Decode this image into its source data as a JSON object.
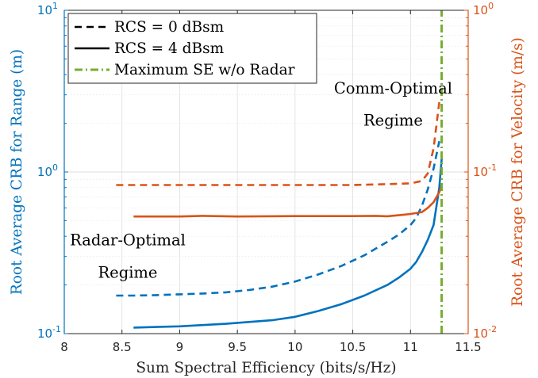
{
  "chart_data": {
    "type": "line",
    "xlabel": "Sum Spectral Efficiency (bits/s/Hz)",
    "ylabel_left": "Root Average CRB for Range (m)",
    "ylabel_right": "Root Average CRB for Velocity (m/s)",
    "xlim": [
      8,
      11.5
    ],
    "ylim_left": [
      0.1,
      10
    ],
    "ylim_right": [
      0.01,
      1
    ],
    "yscale": "log",
    "grid": true,
    "legend_position": "top-left",
    "x_ticks": [
      {
        "value": 8,
        "label": "8"
      },
      {
        "value": 8.5,
        "label": "8.5"
      },
      {
        "value": 9,
        "label": "9"
      },
      {
        "value": 9.5,
        "label": "9.5"
      },
      {
        "value": 10,
        "label": "10"
      },
      {
        "value": 10.5,
        "label": "10.5"
      },
      {
        "value": 11,
        "label": "11"
      },
      {
        "value": 11.5,
        "label": "11.5"
      }
    ],
    "y_ticks_left": [
      {
        "value": 0.1,
        "base": "10",
        "exp": "-1"
      },
      {
        "value": 1,
        "base": "10",
        "exp": "0"
      },
      {
        "value": 10,
        "base": "10",
        "exp": "1"
      }
    ],
    "y_ticks_right": [
      {
        "value": 0.01,
        "base": "10",
        "exp": "-2"
      },
      {
        "value": 0.1,
        "base": "10",
        "exp": "-1"
      },
      {
        "value": 1,
        "base": "10",
        "exp": "0"
      }
    ],
    "legend": [
      {
        "label": "RCS = 0 dBsm",
        "style": "dashed",
        "color": "#000000"
      },
      {
        "label": "RCS = 4 dBsm",
        "style": "solid",
        "color": "#000000"
      },
      {
        "label": "Maximum SE w/o Radar",
        "style": "dashdot",
        "color": "#77AC30"
      }
    ],
    "annotations": [
      {
        "text": "Comm-Optimal",
        "x": 10.85,
        "y_left": 3.3
      },
      {
        "text": "Regime",
        "x": 10.85,
        "y_left": 2.1
      },
      {
        "text": "Radar-Optimal",
        "x": 8.55,
        "y_left": 0.38
      },
      {
        "text": "Regime",
        "x": 8.55,
        "y_left": 0.24
      }
    ],
    "colors": {
      "range": "#0072BD",
      "velocity": "#D95319",
      "max_se": "#77AC30"
    },
    "series": [
      {
        "legend_ref": "RCS = 0 dBsm",
        "axis": "left",
        "color": "#0072BD",
        "style": "dashed",
        "x": [
          8.45,
          8.6,
          8.8,
          9.0,
          9.2,
          9.4,
          9.6,
          9.8,
          10.0,
          10.2,
          10.4,
          10.6,
          10.8,
          10.9,
          11.0,
          11.05,
          11.1,
          11.15,
          11.2,
          11.25
        ],
        "y": [
          0.172,
          0.172,
          0.173,
          0.175,
          0.177,
          0.18,
          0.186,
          0.195,
          0.21,
          0.232,
          0.262,
          0.305,
          0.37,
          0.41,
          0.47,
          0.52,
          0.62,
          0.78,
          1.05,
          1.55
        ]
      },
      {
        "legend_ref": "RCS = 4 dBsm",
        "axis": "left",
        "color": "#0072BD",
        "style": "solid",
        "x": [
          8.6,
          8.8,
          9.0,
          9.2,
          9.4,
          9.6,
          9.8,
          10.0,
          10.2,
          10.4,
          10.6,
          10.8,
          10.9,
          11.0,
          11.05,
          11.1,
          11.15,
          11.2,
          11.25,
          11.27
        ],
        "y": [
          0.109,
          0.11,
          0.111,
          0.113,
          0.115,
          0.118,
          0.121,
          0.127,
          0.138,
          0.152,
          0.172,
          0.2,
          0.222,
          0.252,
          0.278,
          0.32,
          0.38,
          0.47,
          0.8,
          1.2
        ]
      },
      {
        "legend_ref": "RCS = 0 dBsm",
        "axis": "right",
        "color": "#D95319",
        "style": "dashed",
        "x": [
          8.45,
          9.0,
          9.5,
          10.0,
          10.5,
          10.8,
          11.0,
          11.1,
          11.15,
          11.2,
          11.25
        ],
        "y": [
          0.083,
          0.083,
          0.083,
          0.083,
          0.083,
          0.084,
          0.085,
          0.088,
          0.098,
          0.14,
          0.27
        ]
      },
      {
        "legend_ref": "RCS = 4 dBsm",
        "axis": "right",
        "color": "#D95319",
        "style": "solid",
        "x": [
          8.6,
          9.0,
          9.2,
          9.5,
          10.0,
          10.5,
          10.7,
          10.8,
          10.9,
          11.0,
          11.1,
          11.15,
          11.2,
          11.25,
          11.27
        ],
        "y": [
          0.053,
          0.053,
          0.0535,
          0.053,
          0.0533,
          0.0533,
          0.0535,
          0.0532,
          0.054,
          0.055,
          0.0565,
          0.06,
          0.065,
          0.075,
          0.082
        ]
      },
      {
        "legend_ref": "Maximum SE w/o Radar",
        "axis": "left",
        "color": "#77AC30",
        "style": "dashdot",
        "x": [
          11.27,
          11.27
        ],
        "y": [
          0.1,
          10
        ]
      }
    ]
  }
}
